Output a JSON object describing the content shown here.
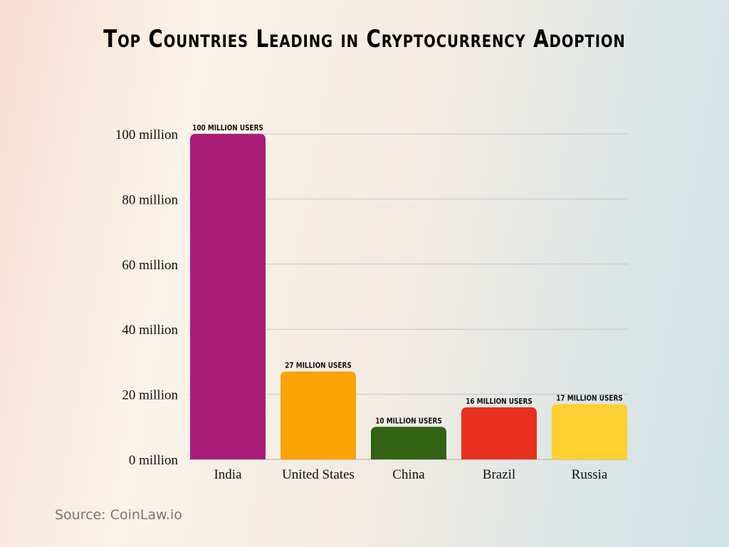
{
  "chart_data": {
    "type": "bar",
    "title": "Top Countries Leading in Cryptocurrency Adoption",
    "categories": [
      "India",
      "United States",
      "China",
      "Brazil",
      "Russia"
    ],
    "values": [
      100,
      27,
      10,
      16,
      17
    ],
    "data_labels": [
      "100 million users",
      "27 million users",
      "10 million users",
      "16 million users",
      "17 million users"
    ],
    "colors": [
      "#a91d78",
      "#f9a304",
      "#336214",
      "#e8301f",
      "#fdd131"
    ],
    "ylim": [
      0,
      100
    ],
    "yticks": [
      0,
      20,
      40,
      60,
      80,
      100
    ],
    "ytick_labels": [
      "0 million",
      "20 million",
      "40 million",
      "60 million",
      "80 million",
      "100 million"
    ],
    "grid": true,
    "xlabel": "",
    "ylabel": ""
  },
  "source": "Source: CoinLaw.io"
}
